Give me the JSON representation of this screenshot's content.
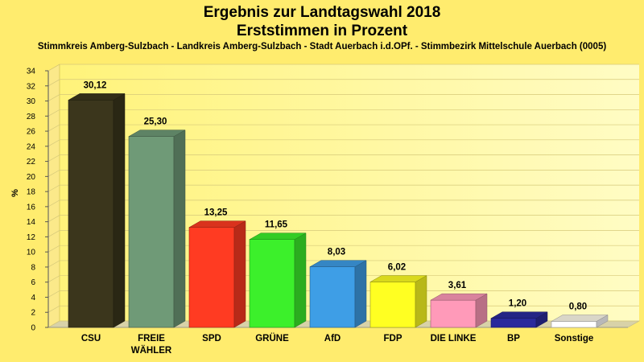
{
  "chart_data": {
    "type": "bar",
    "title_line1": "Ergebnis zur Landtagswahl 2018",
    "title_line2": "Erststimmen in Prozent",
    "subtitle": "Stimmkreis Amberg-Sulzbach - Landkreis Amberg-Sulzbach - Stadt Auerbach i.d.OPf. - Stimmbezirk Mittelschule Auerbach (0005)",
    "ylabel": "%",
    "ylim": [
      0,
      34
    ],
    "ytick_step": 2,
    "categories": [
      "CSU",
      "FREIE WÄHLER",
      "SPD",
      "GRÜNE",
      "AfD",
      "FDP",
      "DIE LINKE",
      "BP",
      "Sonstige"
    ],
    "category_lines": [
      [
        "CSU"
      ],
      [
        "FREIE",
        "WÄHLER"
      ],
      [
        "SPD"
      ],
      [
        "GRÜNE"
      ],
      [
        "AfD"
      ],
      [
        "FDP"
      ],
      [
        "DIE LINKE"
      ],
      [
        "BP"
      ],
      [
        "Sonstige"
      ]
    ],
    "values": [
      30.12,
      25.3,
      13.25,
      11.65,
      8.03,
      6.02,
      3.61,
      1.2,
      0.8
    ],
    "value_labels": [
      "30,12",
      "25,30",
      "13,25",
      "11,65",
      "8,03",
      "6,02",
      "3,61",
      "1,20",
      "0,80"
    ],
    "colors": [
      "#3b361c",
      "#6f9a77",
      "#ff3b22",
      "#3cf02b",
      "#3e9ee6",
      "#ffff22",
      "#ff9ab9",
      "#2a2a9c",
      "#ffffff"
    ],
    "grid": true,
    "legend": "none"
  }
}
